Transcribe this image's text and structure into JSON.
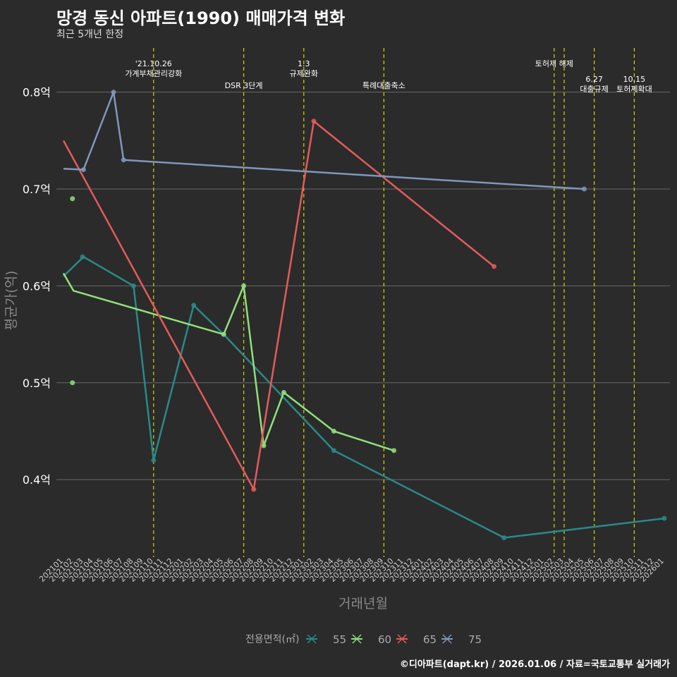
{
  "chart_data": {
    "type": "line",
    "title": "망경 동신 아파트(1990) 매매가격 변화",
    "subtitle": "최근 5개년 한정",
    "xlabel": "거래년월",
    "ylabel": "평균가(억)",
    "caption": "©디아파트(dapt.kr) / 2026.01.06 / 자료=국토교통부 실거래가",
    "legend_title": "전용면적(㎡)",
    "legend_position": "bottom",
    "ylim": [
      0.32,
      0.85
    ],
    "yticks": [
      0.4,
      0.5,
      0.6,
      0.7,
      0.8
    ],
    "ytick_labels": [
      "0.4억",
      "0.5억",
      "0.6억",
      "0.7억",
      "0.8억"
    ],
    "x_start": "2021-01",
    "x_end": "2026-01",
    "xtick_labels": [
      "202101",
      "202102",
      "202103",
      "202104",
      "202105",
      "202106",
      "202107",
      "202108",
      "202109",
      "202110",
      "202111",
      "202112",
      "202201",
      "202202",
      "202203",
      "202204",
      "202205",
      "202206",
      "202207",
      "202208",
      "202209",
      "202210",
      "202211",
      "202212",
      "202301",
      "202302",
      "202303",
      "202304",
      "202305",
      "202306",
      "202307",
      "202308",
      "202309",
      "202310",
      "202311",
      "202312",
      "202401",
      "202402",
      "202403",
      "202404",
      "202405",
      "202406",
      "202407",
      "202408",
      "202409",
      "202410",
      "202411",
      "202412",
      "202501",
      "202502",
      "202503",
      "202504",
      "202505",
      "202506",
      "202507",
      "202508",
      "202509",
      "202510",
      "202511",
      "202512",
      "202601"
    ],
    "annotations": [
      {
        "x": 9,
        "lines": [
          "'21.10.26",
          "가계부채관리강화"
        ],
        "tier": "high"
      },
      {
        "x": 18,
        "lines": [
          "DSR 3단계"
        ],
        "tier": "low"
      },
      {
        "x": 24,
        "lines": [
          "1.3",
          "규제완화"
        ],
        "tier": "high"
      },
      {
        "x": 32,
        "lines": [
          "특례대출축소"
        ],
        "tier": "low"
      },
      {
        "x": 49,
        "lines": [
          "토허제 해제"
        ],
        "tier": "high"
      },
      {
        "x": 50,
        "lines": [],
        "tier": "none"
      },
      {
        "x": 53,
        "lines": [
          "6.27",
          "대출규제"
        ],
        "tier": "mid"
      },
      {
        "x": 57,
        "lines": [
          "10.15",
          "토허제확대"
        ],
        "tier": "mid"
      }
    ],
    "series": [
      {
        "name": "55",
        "color": "#2a8a87",
        "points": [
          [
            1.9,
            0.63
          ],
          [
            7,
            0.6
          ],
          [
            9,
            0.42
          ],
          [
            13,
            0.58
          ],
          [
            16,
            0.55
          ],
          [
            27,
            0.43
          ],
          [
            44,
            0.34
          ],
          [
            60,
            0.36
          ]
        ],
        "trend": [
          [
            0,
            0.61
          ],
          [
            2,
            0.63
          ],
          [
            7,
            0.6
          ],
          [
            9,
            0.42
          ],
          [
            13,
            0.58
          ],
          [
            16,
            0.55
          ],
          [
            27,
            0.43
          ],
          [
            44,
            0.34
          ],
          [
            60,
            0.36
          ]
        ]
      },
      {
        "name": "60",
        "color": "#8fe07a",
        "points": [
          [
            0.9,
            0.69
          ],
          [
            0.9,
            0.5
          ],
          [
            16,
            0.55
          ],
          [
            18,
            0.6
          ],
          [
            20,
            0.435
          ],
          [
            22,
            0.49
          ],
          [
            27,
            0.45
          ],
          [
            33,
            0.43
          ]
        ],
        "trend": [
          [
            0,
            0.613
          ],
          [
            1,
            0.595
          ],
          [
            16,
            0.55
          ],
          [
            18,
            0.6
          ],
          [
            20,
            0.435
          ],
          [
            22,
            0.49
          ],
          [
            27,
            0.45
          ],
          [
            33,
            0.43
          ]
        ]
      },
      {
        "name": "65",
        "color": "#e55a5a",
        "points": [
          [
            19,
            0.39
          ],
          [
            25,
            0.77
          ],
          [
            43,
            0.62
          ]
        ],
        "trend": [
          [
            0,
            0.75
          ],
          [
            19,
            0.39
          ],
          [
            25,
            0.77
          ],
          [
            43,
            0.62
          ]
        ]
      },
      {
        "name": "75",
        "color": "#7f97bd",
        "points": [
          [
            2,
            0.72
          ],
          [
            5,
            0.8
          ],
          [
            6,
            0.73
          ],
          [
            52,
            0.7
          ]
        ],
        "trend": [
          [
            0,
            0.721
          ],
          [
            2,
            0.72
          ],
          [
            5,
            0.8
          ],
          [
            6,
            0.73
          ],
          [
            52,
            0.7
          ]
        ]
      }
    ]
  }
}
